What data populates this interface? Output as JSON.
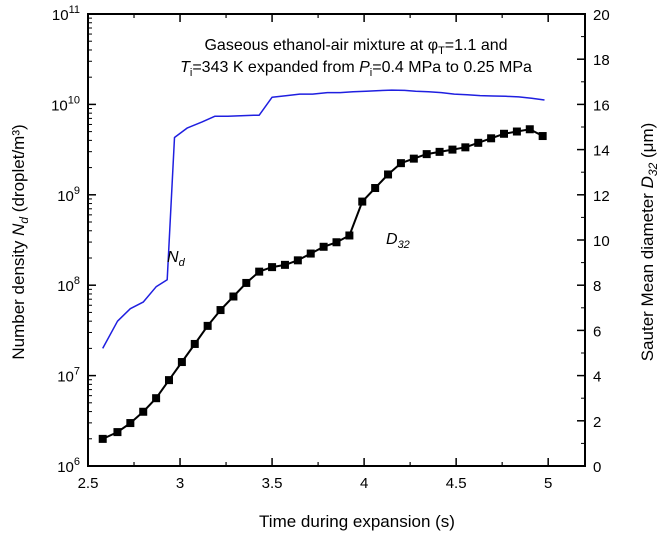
{
  "chart_data": {
    "type": "line",
    "annotation_line1": {
      "prefix": "Gaseous ethanol-air mixture at ",
      "phi": "φ",
      "phi_sub": "T",
      "suffix": "=1.1 and"
    },
    "annotation_line2": {
      "t": "T",
      "t_sub": "i",
      "mid": "=343 K expanded from ",
      "p": "P",
      "p_sub": "i",
      "suffix": "=0.4 MPa to 0.25 MPa"
    },
    "xlabel": "Time during expansion (s)",
    "ylabel_left": {
      "prefix": "Number density ",
      "sym": "N",
      "sub": "d",
      "suffix": " (droplet/m³)"
    },
    "ylabel_right": {
      "prefix": "Sauter Mean diameter ",
      "sym": "D",
      "sub": "32",
      "suffix": " (μm)"
    },
    "xlim": [
      2.5,
      5.2
    ],
    "x_ticks": [
      "2.5",
      "3",
      "3.5",
      "4",
      "4.5",
      "5"
    ],
    "x_tick_values": [
      2.5,
      3,
      3.5,
      4,
      4.5,
      5
    ],
    "ylim_left_log10": [
      6,
      11
    ],
    "y_ticks_left": [
      {
        "base": "10",
        "exp": "6"
      },
      {
        "base": "10",
        "exp": "7"
      },
      {
        "base": "10",
        "exp": "8"
      },
      {
        "base": "10",
        "exp": "9"
      },
      {
        "base": "10",
        "exp": "10"
      },
      {
        "base": "10",
        "exp": "11"
      }
    ],
    "ylim_right": [
      0,
      20
    ],
    "y_ticks_right": [
      "0",
      "2",
      "4",
      "6",
      "8",
      "10",
      "12",
      "14",
      "16",
      "18",
      "20"
    ],
    "y_tick_values_right": [
      0,
      2,
      4,
      6,
      8,
      10,
      12,
      14,
      16,
      18,
      20
    ],
    "series": [
      {
        "name_sym": "N",
        "name_sub": "d",
        "axis": "left",
        "color": "#1f1fe0",
        "marker": "none",
        "x": [
          2.58,
          2.66,
          2.73,
          2.8,
          2.87,
          2.93,
          2.97,
          3.04,
          3.12,
          3.19,
          3.26,
          3.33,
          3.4,
          3.43,
          3.5,
          3.58,
          3.65,
          3.72,
          3.8,
          3.87,
          3.94,
          4.01,
          4.08,
          4.15,
          4.22,
          4.28,
          4.35,
          4.42,
          4.49,
          4.56,
          4.63,
          4.7,
          4.77,
          4.84,
          4.91,
          4.98
        ],
        "y": [
          20000000.0,
          40000000.0,
          55000000.0,
          65000000.0,
          96000000.0,
          115000000.0,
          4300000000.0,
          5500000000.0,
          6400000000.0,
          7400000000.0,
          7400000000.0,
          7500000000.0,
          7600000000.0,
          7600000000.0,
          12000000000.0,
          12500000000.0,
          13000000000.0,
          13000000000.0,
          13500000000.0,
          13500000000.0,
          13800000000.0,
          14000000000.0,
          14200000000.0,
          14400000000.0,
          14300000000.0,
          14000000000.0,
          13800000000.0,
          13500000000.0,
          13000000000.0,
          12800000000.0,
          12500000000.0,
          12400000000.0,
          12300000000.0,
          12100000000.0,
          11700000000.0,
          11200000000.0
        ]
      },
      {
        "name_sym": "D",
        "name_sub": "32",
        "axis": "right",
        "color": "#000000",
        "marker": "square",
        "x": [
          2.58,
          2.66,
          2.73,
          2.8,
          2.87,
          2.94,
          3.01,
          3.08,
          3.15,
          3.22,
          3.29,
          3.36,
          3.43,
          3.5,
          3.57,
          3.64,
          3.71,
          3.78,
          3.85,
          3.92,
          3.99,
          4.06,
          4.13,
          4.2,
          4.27,
          4.34,
          4.41,
          4.48,
          4.55,
          4.62,
          4.69,
          4.76,
          4.83,
          4.9,
          4.97
        ],
        "y": [
          1.2,
          1.5,
          1.9,
          2.4,
          3.0,
          3.8,
          4.6,
          5.4,
          6.2,
          6.9,
          7.5,
          8.1,
          8.6,
          8.8,
          8.9,
          9.1,
          9.4,
          9.7,
          9.9,
          10.2,
          11.7,
          12.3,
          12.9,
          13.4,
          13.6,
          13.8,
          13.9,
          14.0,
          14.1,
          14.3,
          14.5,
          14.7,
          14.8,
          14.9,
          14.6
        ]
      }
    ],
    "grid": false
  }
}
